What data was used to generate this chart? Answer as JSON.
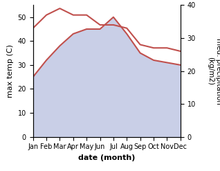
{
  "months": [
    "Jan",
    "Feb",
    "Mar",
    "Apr",
    "May",
    "Jun",
    "Jul",
    "Aug",
    "Sep",
    "Oct",
    "Nov",
    "Dec"
  ],
  "max_temp": [
    25,
    32,
    38,
    43,
    45,
    45,
    50,
    43,
    35,
    32,
    31,
    30
  ],
  "precipitation": [
    33,
    37,
    39,
    37,
    37,
    34,
    34,
    33,
    28,
    27,
    27,
    26
  ],
  "temp_color": "#c0504d",
  "fill_color": "#b8c0e0",
  "fill_alpha": 0.75,
  "temp_ylim": [
    0,
    55
  ],
  "precip_ylim": [
    0,
    40
  ],
  "temp_yticks": [
    0,
    10,
    20,
    30,
    40,
    50
  ],
  "precip_yticks": [
    0,
    10,
    20,
    30,
    40
  ],
  "xlabel": "date (month)",
  "ylabel_left": "max temp (C)",
  "ylabel_right": "med. precipitation\n(kg/m2)",
  "label_fontsize": 8,
  "tick_fontsize": 7
}
